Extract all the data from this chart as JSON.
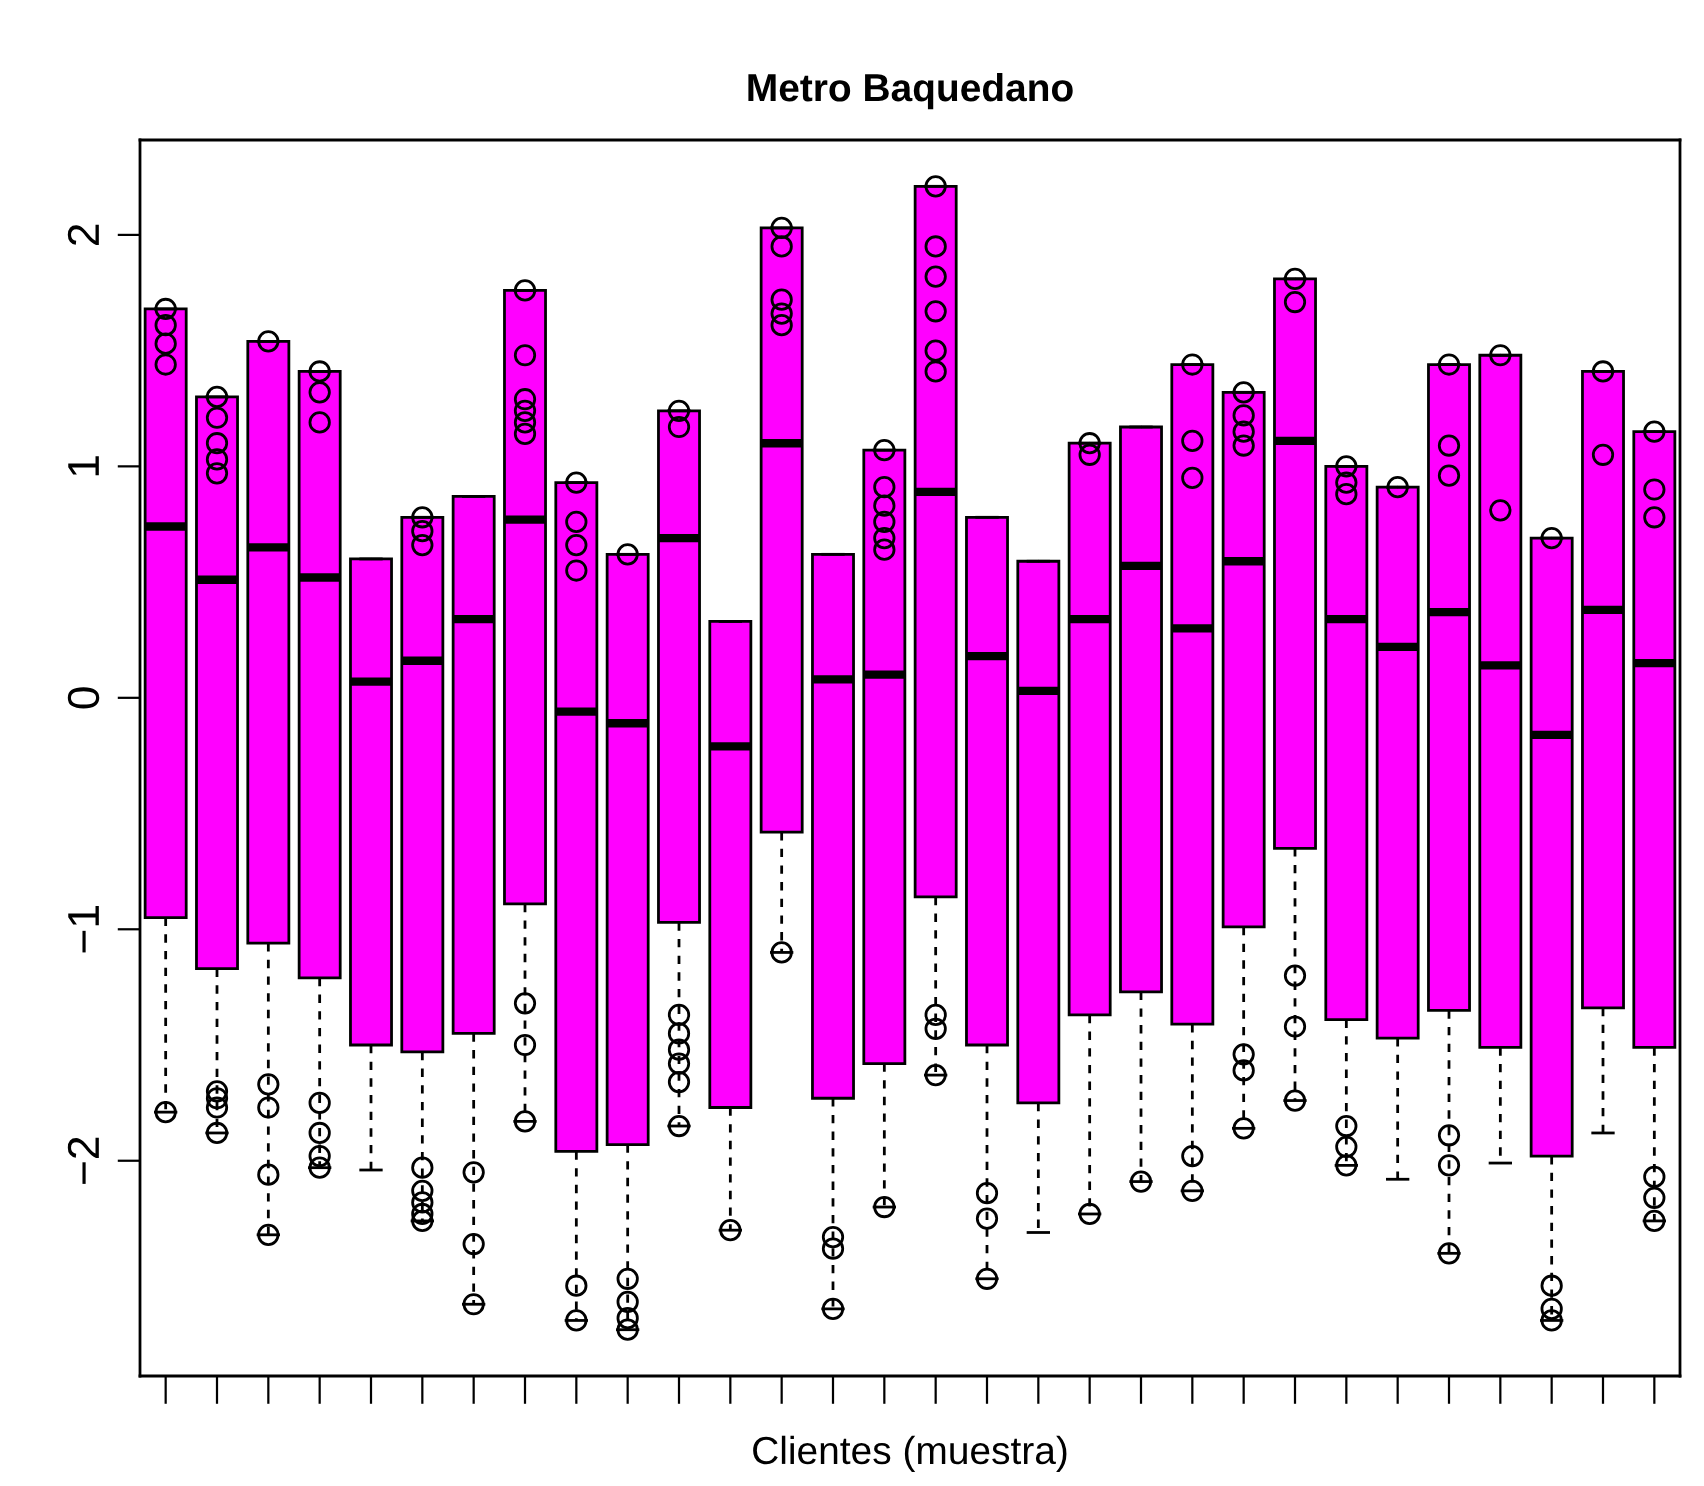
{
  "chart_data": {
    "type": "box",
    "title": "Metro Baquedano",
    "xlabel": "Clientes (muestra)",
    "color": "#ff00ff",
    "categories": [
      null,
      null,
      null,
      null,
      null,
      null,
      null,
      null,
      null,
      null,
      null,
      null,
      null,
      null,
      null,
      null,
      null,
      null,
      null,
      null,
      null,
      null,
      null,
      null,
      null,
      null,
      null,
      null,
      null,
      null
    ],
    "ylim": [
      -2.93,
      2.41
    ],
    "yticks": [
      -2,
      -1,
      0,
      1,
      2
    ],
    "grid": false,
    "boxes": [
      {
        "low": -1.79,
        "q1": -0.95,
        "median": 0.74,
        "q3": 1.68,
        "high": 1.68,
        "outliers": [
          1.68,
          1.61,
          1.53,
          1.44,
          -1.79
        ]
      },
      {
        "low": -1.88,
        "q1": -1.17,
        "median": 0.51,
        "q3": 1.3,
        "high": 1.3,
        "outliers": [
          1.3,
          1.21,
          1.1,
          1.03,
          0.97,
          -1.7,
          -1.73,
          -1.77,
          -1.88
        ]
      },
      {
        "low": -2.32,
        "q1": -1.06,
        "median": 0.65,
        "q3": 1.54,
        "high": 1.54,
        "outliers": [
          1.54,
          -1.67,
          -1.77,
          -2.06,
          -2.32
        ]
      },
      {
        "low": -2.03,
        "q1": -1.21,
        "median": 0.52,
        "q3": 1.41,
        "high": 1.41,
        "outliers": [
          1.41,
          1.32,
          1.19,
          -1.75,
          -1.88,
          -1.98,
          -2.03
        ]
      },
      {
        "low": -2.04,
        "q1": -1.5,
        "median": 0.07,
        "q3": 0.6,
        "high": 0.6
      },
      {
        "low": -2.26,
        "q1": -1.53,
        "median": 0.16,
        "q3": 0.78,
        "high": 0.78,
        "outliers": [
          0.78,
          0.72,
          0.66,
          -2.03,
          -2.13,
          -2.18,
          -2.23,
          -2.26
        ]
      },
      {
        "low": -2.62,
        "q1": -1.45,
        "median": 0.34,
        "q3": 0.87,
        "high": 0.87,
        "outliers": [
          -2.05,
          -2.36,
          -2.62
        ]
      },
      {
        "low": -1.83,
        "q1": -0.89,
        "median": 0.77,
        "q3": 1.76,
        "high": 1.76,
        "outliers": [
          1.76,
          1.48,
          1.29,
          1.24,
          1.19,
          1.14,
          -1.32,
          -1.5,
          -1.83
        ]
      },
      {
        "low": -2.69,
        "q1": -1.96,
        "median": -0.06,
        "q3": 0.93,
        "high": 0.93,
        "outliers": [
          0.93,
          0.76,
          0.66,
          0.55,
          -2.54,
          -2.69
        ]
      },
      {
        "low": -2.73,
        "q1": -1.93,
        "median": -0.11,
        "q3": 0.62,
        "high": 0.62,
        "outliers": [
          0.62,
          -2.51,
          -2.61,
          -2.68,
          -2.73
        ]
      },
      {
        "low": -1.85,
        "q1": -0.97,
        "median": 0.69,
        "q3": 1.24,
        "high": 1.24,
        "outliers": [
          1.24,
          1.17,
          -1.37,
          -1.45,
          -1.52,
          -1.58,
          -1.66,
          -1.85
        ]
      },
      {
        "low": -2.3,
        "q1": -1.77,
        "median": -0.21,
        "q3": 0.33,
        "high": 0.33,
        "outliers": [
          -2.3
        ]
      },
      {
        "low": -1.1,
        "q1": -0.58,
        "median": 1.1,
        "q3": 2.03,
        "high": 2.03,
        "outliers": [
          2.03,
          1.95,
          1.72,
          1.66,
          1.61,
          -1.1
        ]
      },
      {
        "low": -2.64,
        "q1": -1.73,
        "median": 0.08,
        "q3": 0.62,
        "high": 0.62,
        "outliers": [
          -2.33,
          -2.38,
          -2.64
        ]
      },
      {
        "low": -2.2,
        "q1": -1.58,
        "median": 0.1,
        "q3": 1.07,
        "high": 1.07,
        "outliers": [
          1.07,
          0.91,
          0.83,
          0.76,
          0.69,
          0.64,
          -2.2
        ]
      },
      {
        "low": -1.63,
        "q1": -0.86,
        "median": 0.89,
        "q3": 2.21,
        "high": 2.21,
        "outliers": [
          2.21,
          1.95,
          1.82,
          1.67,
          1.5,
          1.41,
          -1.37,
          -1.43,
          -1.63
        ]
      },
      {
        "low": -2.51,
        "q1": -1.5,
        "median": 0.18,
        "q3": 0.78,
        "high": 0.78,
        "outliers": [
          -2.14,
          -2.25,
          -2.51
        ]
      },
      {
        "low": -2.31,
        "q1": -1.75,
        "median": 0.03,
        "q3": 0.59,
        "high": 0.59
      },
      {
        "low": -2.23,
        "q1": -1.37,
        "median": 0.34,
        "q3": 1.1,
        "high": 1.1,
        "outliers": [
          1.1,
          1.05,
          -2.23
        ]
      },
      {
        "low": -2.09,
        "q1": -1.27,
        "median": 0.57,
        "q3": 1.17,
        "high": 1.17,
        "outliers": [
          -2.09
        ]
      },
      {
        "low": -2.13,
        "q1": -1.41,
        "median": 0.3,
        "q3": 1.44,
        "high": 1.44,
        "outliers": [
          1.44,
          1.11,
          0.95,
          -1.98,
          -2.13
        ]
      },
      {
        "low": -1.86,
        "q1": -0.99,
        "median": 0.59,
        "q3": 1.32,
        "high": 1.32,
        "outliers": [
          1.32,
          1.22,
          1.15,
          1.09,
          -1.54,
          -1.61,
          -1.86
        ]
      },
      {
        "low": -1.74,
        "q1": -0.65,
        "median": 1.11,
        "q3": 1.81,
        "high": 1.81,
        "outliers": [
          1.81,
          1.71,
          -1.2,
          -1.42,
          -1.74
        ]
      },
      {
        "low": -2.02,
        "q1": -1.39,
        "median": 0.34,
        "q3": 1.0,
        "high": 1.0,
        "outliers": [
          1.0,
          0.93,
          0.88,
          -1.85,
          -1.94,
          -2.02
        ]
      },
      {
        "low": -2.08,
        "q1": -1.47,
        "median": 0.22,
        "q3": 0.91,
        "high": 0.91,
        "outliers": [
          0.91
        ]
      },
      {
        "low": -2.4,
        "q1": -1.35,
        "median": 0.37,
        "q3": 1.44,
        "high": 1.44,
        "outliers": [
          1.44,
          1.09,
          0.96,
          -1.89,
          -2.02,
          -2.4
        ]
      },
      {
        "low": -2.01,
        "q1": -1.51,
        "median": 0.14,
        "q3": 1.48,
        "high": 1.48,
        "outliers": [
          1.48,
          0.81
        ]
      },
      {
        "low": -2.69,
        "q1": -1.98,
        "median": -0.16,
        "q3": 0.69,
        "high": 0.69,
        "outliers": [
          0.69,
          -2.54,
          -2.64,
          -2.69
        ]
      },
      {
        "low": -1.88,
        "q1": -1.34,
        "median": 0.38,
        "q3": 1.41,
        "high": 1.41,
        "outliers": [
          1.41,
          1.05
        ]
      },
      {
        "low": -2.26,
        "q1": -1.51,
        "median": 0.15,
        "q3": 1.15,
        "high": 1.15,
        "outliers": [
          1.15,
          0.9,
          0.78,
          -2.07,
          -2.16,
          -2.26
        ]
      }
    ]
  }
}
